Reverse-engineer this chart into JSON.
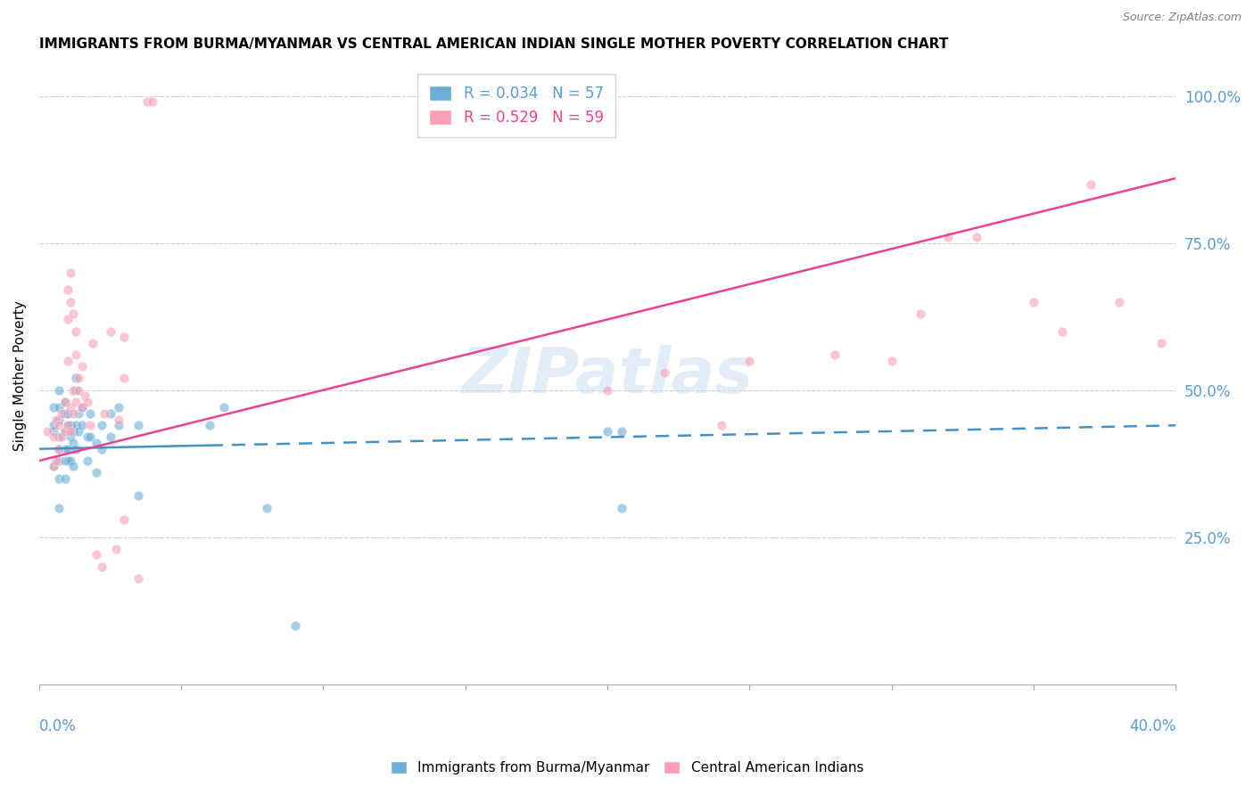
{
  "title": "IMMIGRANTS FROM BURMA/MYANMAR VS CENTRAL AMERICAN INDIAN SINGLE MOTHER POVERTY CORRELATION CHART",
  "source": "Source: ZipAtlas.com",
  "ylabel": "Single Mother Poverty",
  "right_ytick_vals": [
    1.0,
    0.75,
    0.5,
    0.25
  ],
  "right_ytick_labels": [
    "100.0%",
    "75.0%",
    "50.0%",
    "25.0%"
  ],
  "xlim": [
    0.0,
    0.4
  ],
  "ylim": [
    0.0,
    1.05
  ],
  "legend_label1": "R = 0.034   N = 57",
  "legend_label2": "R = 0.529   N = 59",
  "watermark": "ZIPatlas",
  "blue_color": "#6baed6",
  "pink_color": "#fa9fb5",
  "blue_line_color": "#4292c6",
  "pink_line_color": "#e84393",
  "blue_scatter": [
    [
      0.005,
      0.37
    ],
    [
      0.005,
      0.43
    ],
    [
      0.005,
      0.44
    ],
    [
      0.005,
      0.47
    ],
    [
      0.007,
      0.3
    ],
    [
      0.007,
      0.35
    ],
    [
      0.007,
      0.38
    ],
    [
      0.007,
      0.4
    ],
    [
      0.007,
      0.42
    ],
    [
      0.007,
      0.45
    ],
    [
      0.007,
      0.47
    ],
    [
      0.007,
      0.5
    ],
    [
      0.009,
      0.35
    ],
    [
      0.009,
      0.38
    ],
    [
      0.009,
      0.4
    ],
    [
      0.009,
      0.43
    ],
    [
      0.009,
      0.46
    ],
    [
      0.009,
      0.48
    ],
    [
      0.01,
      0.38
    ],
    [
      0.01,
      0.4
    ],
    [
      0.01,
      0.44
    ],
    [
      0.01,
      0.46
    ],
    [
      0.011,
      0.38
    ],
    [
      0.011,
      0.42
    ],
    [
      0.011,
      0.44
    ],
    [
      0.012,
      0.37
    ],
    [
      0.012,
      0.41
    ],
    [
      0.012,
      0.43
    ],
    [
      0.013,
      0.4
    ],
    [
      0.013,
      0.44
    ],
    [
      0.013,
      0.5
    ],
    [
      0.013,
      0.52
    ],
    [
      0.014,
      0.43
    ],
    [
      0.014,
      0.46
    ],
    [
      0.015,
      0.44
    ],
    [
      0.015,
      0.47
    ],
    [
      0.017,
      0.38
    ],
    [
      0.017,
      0.42
    ],
    [
      0.018,
      0.42
    ],
    [
      0.018,
      0.46
    ],
    [
      0.02,
      0.36
    ],
    [
      0.02,
      0.41
    ],
    [
      0.022,
      0.4
    ],
    [
      0.022,
      0.44
    ],
    [
      0.025,
      0.42
    ],
    [
      0.025,
      0.46
    ],
    [
      0.028,
      0.44
    ],
    [
      0.028,
      0.47
    ],
    [
      0.035,
      0.32
    ],
    [
      0.035,
      0.44
    ],
    [
      0.06,
      0.44
    ],
    [
      0.065,
      0.47
    ],
    [
      0.08,
      0.3
    ],
    [
      0.09,
      0.1
    ],
    [
      0.2,
      0.43
    ],
    [
      0.205,
      0.43
    ],
    [
      0.205,
      0.3
    ]
  ],
  "pink_scatter": [
    [
      0.003,
      0.43
    ],
    [
      0.005,
      0.37
    ],
    [
      0.005,
      0.42
    ],
    [
      0.006,
      0.38
    ],
    [
      0.006,
      0.45
    ],
    [
      0.007,
      0.4
    ],
    [
      0.007,
      0.44
    ],
    [
      0.008,
      0.42
    ],
    [
      0.008,
      0.46
    ],
    [
      0.009,
      0.43
    ],
    [
      0.009,
      0.48
    ],
    [
      0.01,
      0.44
    ],
    [
      0.01,
      0.55
    ],
    [
      0.01,
      0.62
    ],
    [
      0.01,
      0.67
    ],
    [
      0.011,
      0.43
    ],
    [
      0.011,
      0.47
    ],
    [
      0.011,
      0.65
    ],
    [
      0.011,
      0.7
    ],
    [
      0.012,
      0.46
    ],
    [
      0.012,
      0.5
    ],
    [
      0.012,
      0.63
    ],
    [
      0.013,
      0.48
    ],
    [
      0.013,
      0.56
    ],
    [
      0.013,
      0.6
    ],
    [
      0.014,
      0.5
    ],
    [
      0.014,
      0.52
    ],
    [
      0.015,
      0.47
    ],
    [
      0.015,
      0.54
    ],
    [
      0.016,
      0.49
    ],
    [
      0.017,
      0.48
    ],
    [
      0.018,
      0.44
    ],
    [
      0.019,
      0.58
    ],
    [
      0.02,
      0.22
    ],
    [
      0.022,
      0.2
    ],
    [
      0.023,
      0.46
    ],
    [
      0.025,
      0.6
    ],
    [
      0.027,
      0.23
    ],
    [
      0.028,
      0.45
    ],
    [
      0.03,
      0.28
    ],
    [
      0.03,
      0.52
    ],
    [
      0.03,
      0.59
    ],
    [
      0.035,
      0.18
    ],
    [
      0.038,
      0.99
    ],
    [
      0.04,
      0.99
    ],
    [
      0.2,
      0.5
    ],
    [
      0.22,
      0.53
    ],
    [
      0.24,
      0.44
    ],
    [
      0.25,
      0.55
    ],
    [
      0.28,
      0.56
    ],
    [
      0.3,
      0.55
    ],
    [
      0.31,
      0.63
    ],
    [
      0.32,
      0.76
    ],
    [
      0.33,
      0.76
    ],
    [
      0.35,
      0.65
    ],
    [
      0.36,
      0.6
    ],
    [
      0.37,
      0.85
    ],
    [
      0.38,
      0.65
    ],
    [
      0.395,
      0.58
    ]
  ],
  "blue_line": {
    "x0": 0.0,
    "y0": 0.4,
    "x1": 0.4,
    "y1": 0.44
  },
  "pink_line": {
    "x0": 0.0,
    "y0": 0.38,
    "x1": 0.4,
    "y1": 0.86
  },
  "blue_line_dashed_start": 0.06,
  "grid_color": "#d0d0d0",
  "bg_color": "#ffffff",
  "axis_label_color": "#5b9bd5",
  "legend_r1_color": "#5b9bd5",
  "legend_r2_color": "#e84393",
  "bottom_legend_label1": "Immigrants from Burma/Myanmar",
  "bottom_legend_label2": "Central American Indians"
}
